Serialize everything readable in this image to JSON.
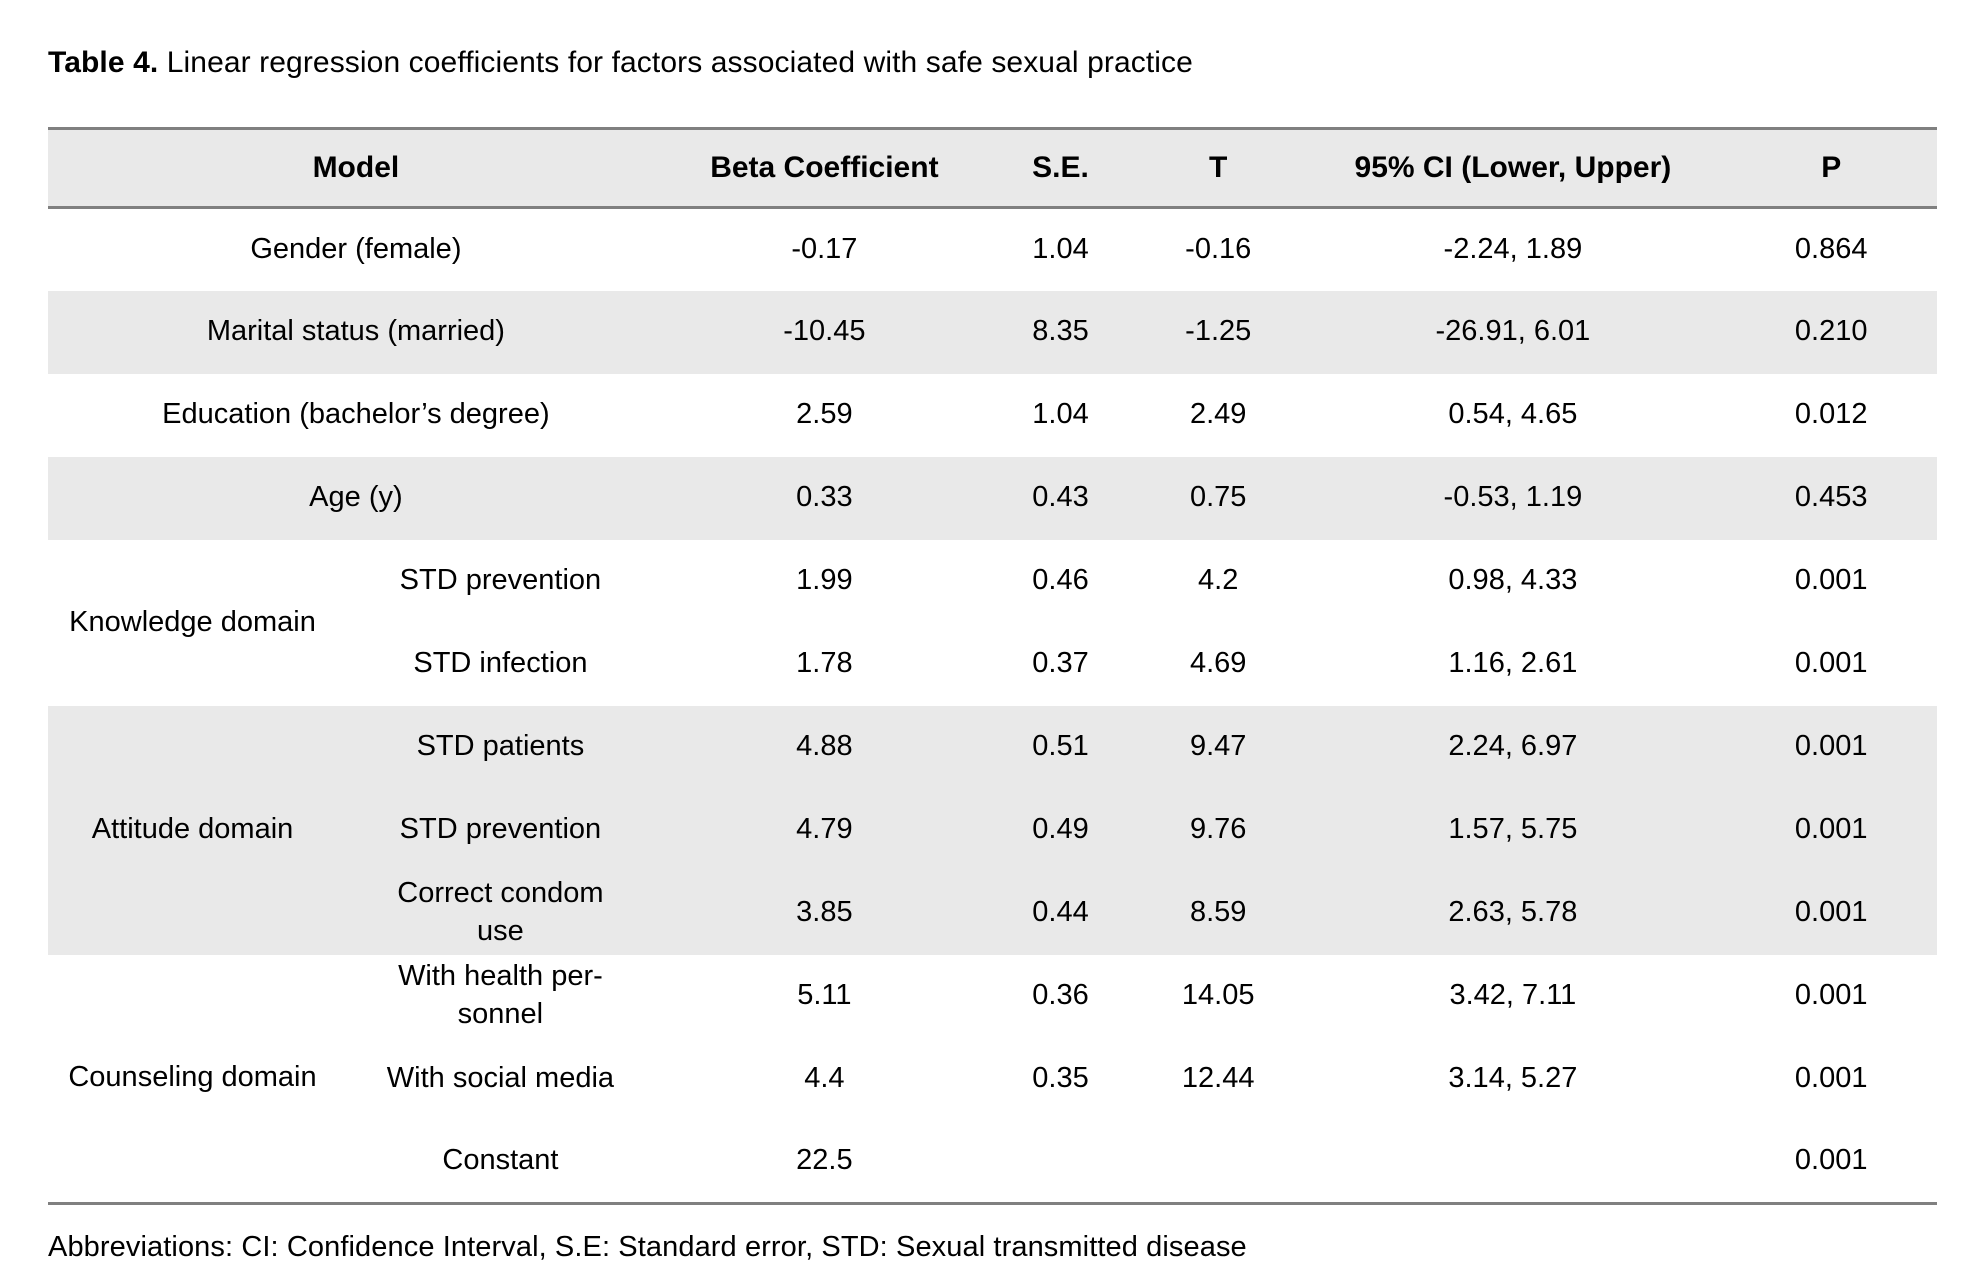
{
  "page": {
    "title_label": "Table 4.",
    "title_text": " Linear regression coefficients for factors associated with safe sexual practice",
    "footnote": "Abbreviations: CI: Confidence Interval, S.E: Standard error, STD: Sexual transmitted disease"
  },
  "colors": {
    "row_shade": "#e9e9e9",
    "border": "#808080",
    "text": "#000000"
  },
  "table": {
    "headers": {
      "model": "Model",
      "beta": "Beta Coefficient",
      "se": "S.E.",
      "t": "T",
      "ci": "95% CI (Lower, Upper)",
      "p": "P"
    },
    "groups": [
      {
        "domain": null,
        "shaded": false,
        "rows": [
          {
            "label": "Gender (female)",
            "beta": "-0.17",
            "se": "1.04",
            "t": "-0.16",
            "ci": "-2.24, 1.89",
            "p": "0.864"
          }
        ]
      },
      {
        "domain": null,
        "shaded": true,
        "rows": [
          {
            "label": "Marital status (married)",
            "beta": "-10.45",
            "se": "8.35",
            "t": "-1.25",
            "ci": "-26.91, 6.01",
            "p": "0.210"
          }
        ]
      },
      {
        "domain": null,
        "shaded": false,
        "rows": [
          {
            "label": "Education (bachelor’s degree)",
            "beta": "2.59",
            "se": "1.04",
            "t": "2.49",
            "ci": "0.54, 4.65",
            "p": "0.012"
          }
        ]
      },
      {
        "domain": null,
        "shaded": true,
        "rows": [
          {
            "label": "Age (y)",
            "beta": "0.33",
            "se": "0.43",
            "t": "0.75",
            "ci": "-0.53, 1.19",
            "p": "0.453"
          }
        ]
      },
      {
        "domain": "Knowledge domain",
        "shaded": false,
        "rows": [
          {
            "label": "STD prevention",
            "beta": "1.99",
            "se": "0.46",
            "t": "4.2",
            "ci": "0.98, 4.33",
            "p": "0.001"
          },
          {
            "label": "STD infection",
            "beta": "1.78",
            "se": "0.37",
            "t": "4.69",
            "ci": "1.16, 2.61",
            "p": "0.001"
          }
        ]
      },
      {
        "domain": "Attitude domain",
        "shaded": true,
        "rows": [
          {
            "label": "STD patients",
            "beta": "4.88",
            "se": "0.51",
            "t": "9.47",
            "ci": "2.24, 6.97",
            "p": "0.001"
          },
          {
            "label": "STD prevention",
            "beta": "4.79",
            "se": "0.49",
            "t": "9.76",
            "ci": "1.57, 5.75",
            "p": "0.001"
          },
          {
            "label": "Correct condom\nuse",
            "beta": "3.85",
            "se": "0.44",
            "t": "8.59",
            "ci": "2.63, 5.78",
            "p": "0.001"
          }
        ]
      },
      {
        "domain": "Counseling domain",
        "shaded": false,
        "rows": [
          {
            "label": "With health per-\nsonnel",
            "beta": "5.11",
            "se": "0.36",
            "t": "14.05",
            "ci": "3.42, 7.11",
            "p": "0.001"
          },
          {
            "label": "With social media",
            "beta": "4.4",
            "se": "0.35",
            "t": "12.44",
            "ci": "3.14, 5.27",
            "p": "0.001"
          },
          {
            "label": "Constant",
            "beta": "22.5",
            "se": "",
            "t": "",
            "ci": "",
            "p": "0.001"
          }
        ]
      }
    ]
  }
}
